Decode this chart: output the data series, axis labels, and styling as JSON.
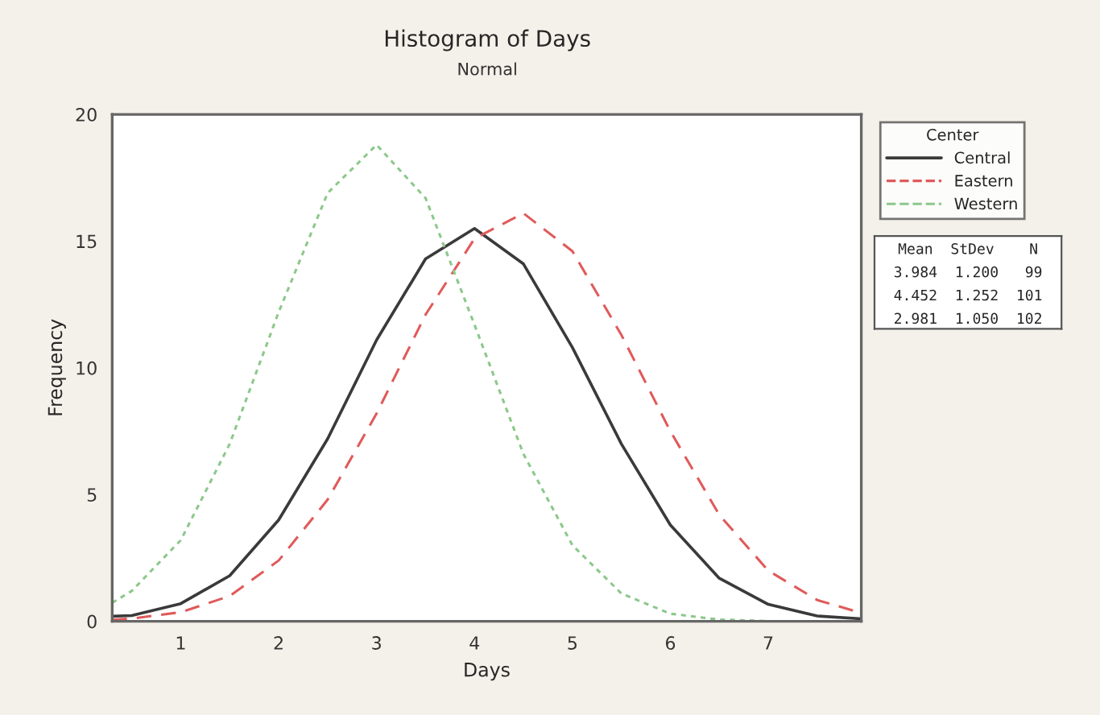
{
  "chart_data": {
    "type": "line",
    "title": "Histogram of Days",
    "subtitle": "Normal",
    "xlabel": "Days",
    "ylabel": "Frequency",
    "legend_title": "Center",
    "legend": "right",
    "xlim": [
      0.3,
      7.95
    ],
    "xticks": [
      1,
      2,
      3,
      4,
      5,
      6,
      7
    ],
    "ylim": [
      0,
      20
    ],
    "yticks": [
      0,
      5,
      10,
      15,
      20
    ],
    "grid": false,
    "marker": "none",
    "series": [
      {
        "name": "Central",
        "color": "#3a3a3a",
        "line_style": "solid",
        "x": [
          0.3,
          0.5,
          1,
          1.5,
          2,
          2.5,
          3,
          3.5,
          4,
          4.5,
          5,
          5.5,
          6,
          6.5,
          7,
          7.5,
          7.95
        ],
        "values": [
          0.2,
          0.23,
          0.7,
          1.8,
          4.0,
          7.2,
          11.1,
          14.3,
          15.5,
          14.1,
          10.8,
          7.0,
          3.8,
          1.7,
          0.67,
          0.21,
          0.1
        ]
      },
      {
        "name": "Eastern",
        "color": "#e05a5a",
        "line_style": "dashed",
        "x": [
          0.3,
          0.5,
          1,
          1.5,
          2,
          2.5,
          3,
          3.5,
          4,
          4.5,
          5,
          5.5,
          6,
          6.5,
          7,
          7.5,
          7.95
        ],
        "values": [
          0.06,
          0.11,
          0.36,
          1.0,
          2.4,
          4.8,
          8.2,
          12.1,
          15.1,
          16.1,
          14.6,
          11.3,
          7.5,
          4.2,
          2.0,
          0.84,
          0.33
        ]
      },
      {
        "name": "Western",
        "color": "#8cc88c",
        "line_style": "dotted",
        "x": [
          0.3,
          0.5,
          1,
          1.5,
          2,
          2.5,
          3,
          3.5,
          4,
          4.5,
          5,
          5.5,
          6,
          6.5,
          7
        ],
        "values": [
          0.73,
          1.2,
          3.2,
          7.0,
          12.2,
          16.9,
          18.8,
          16.7,
          11.7,
          6.6,
          3.0,
          1.1,
          0.3,
          0.07,
          0.01
        ]
      }
    ],
    "annotations": [
      "Mean  StDev    N",
      "3.984  1.200   99",
      "4.452  1.252  101",
      "2.981  1.050  102"
    ]
  }
}
